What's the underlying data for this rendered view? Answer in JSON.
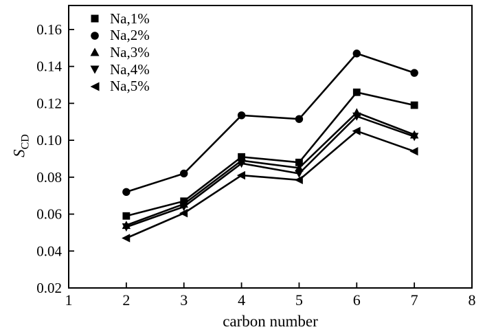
{
  "figure": {
    "background": "#ffffff",
    "ink_color": "#000000"
  },
  "chart_data": {
    "type": "line",
    "title": "",
    "xlabel": "carbon number",
    "ylabel": "S_CD",
    "ylabel_main": "S",
    "ylabel_sub": "CD",
    "x": [
      2,
      3,
      4,
      5,
      6,
      7
    ],
    "xlim": [
      1,
      8
    ],
    "ylim": [
      0.02,
      0.173
    ],
    "xticks": [
      1,
      2,
      3,
      4,
      5,
      6,
      7,
      8
    ],
    "xtick_labels": [
      "1",
      "2",
      "3",
      "4",
      "5",
      "6",
      "7",
      "8"
    ],
    "yticks": [
      0.02,
      0.04,
      0.06,
      0.08,
      0.1,
      0.12,
      0.14,
      0.16
    ],
    "ytick_labels": [
      "0.02",
      "0.04",
      "0.06",
      "0.08",
      "0.10",
      "0.12",
      "0.14",
      "0.16"
    ],
    "grid": false,
    "legend_position": "top-left-inside",
    "line_color": "#000000",
    "marker_color": "#000000",
    "series": [
      {
        "name": "Na,1%",
        "marker": "square",
        "values": [
          0.059,
          0.067,
          0.091,
          0.088,
          0.126,
          0.119
        ]
      },
      {
        "name": "Na,2%",
        "marker": "circle",
        "values": [
          0.072,
          0.082,
          0.1135,
          0.1115,
          0.147,
          0.1365
        ]
      },
      {
        "name": "Na,3%",
        "marker": "triangle-up",
        "values": [
          0.054,
          0.0655,
          0.089,
          0.085,
          0.115,
          0.103
        ]
      },
      {
        "name": "Na,4%",
        "marker": "triangle-down",
        "values": [
          0.053,
          0.064,
          0.0875,
          0.082,
          0.113,
          0.102
        ]
      },
      {
        "name": "Na,5%",
        "marker": "triangle-left",
        "values": [
          0.047,
          0.0605,
          0.081,
          0.0785,
          0.105,
          0.094
        ]
      }
    ]
  }
}
